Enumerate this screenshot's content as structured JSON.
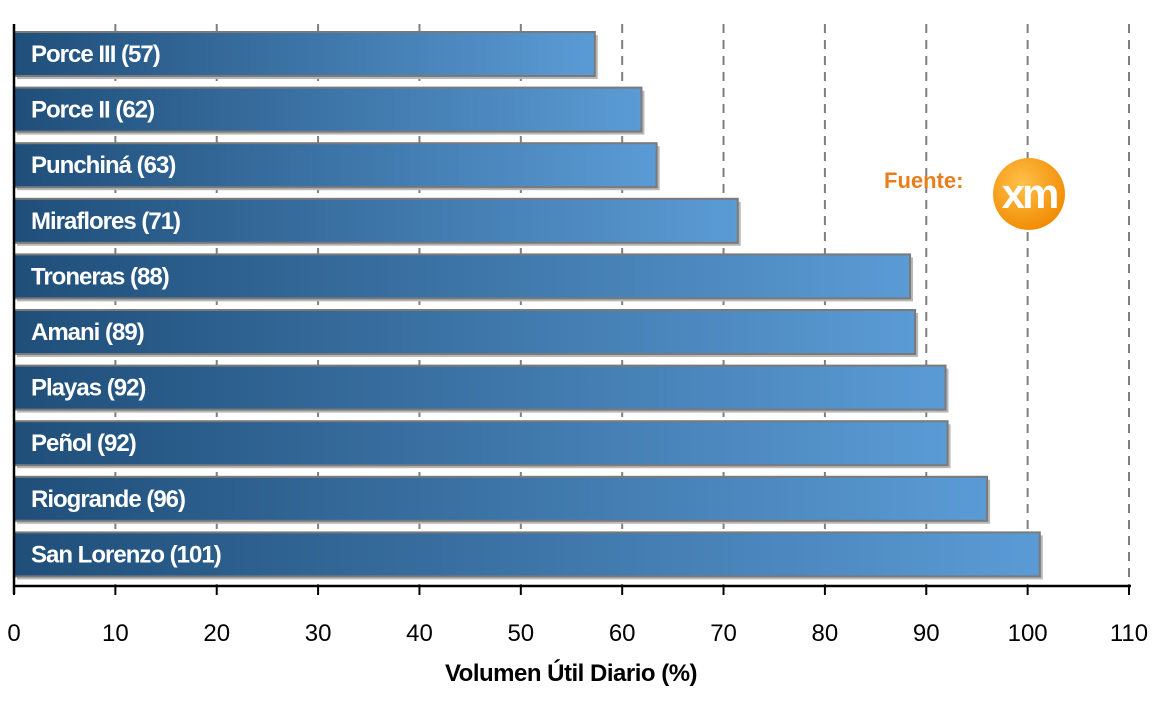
{
  "chart_data": {
    "type": "bar",
    "orientation": "horizontal",
    "categories": [
      "Porce III (57)",
      "Porce II (62)",
      "Punchiná (63)",
      "Miraflores (71)",
      "Troneras (88)",
      "Amani (89)",
      "Playas (92)",
      "Peñol (92)",
      "Riogrande (96)",
      "San Lorenzo (101)"
    ],
    "values": [
      57.3,
      61.9,
      63.4,
      71.4,
      88.4,
      88.9,
      91.9,
      92.1,
      96.0,
      101.2
    ],
    "xlabel": "Volumen Útil Diario (%)",
    "xlim": [
      0,
      110
    ],
    "xticks": [
      "0",
      "10",
      "20",
      "30",
      "40",
      "50",
      "60",
      "70",
      "80",
      "90",
      "100",
      "110"
    ],
    "grid": "vertical dashed",
    "bar_color_start": "#1f4e79",
    "bar_color_end": "#5b9bd5"
  },
  "source": {
    "label": "Fuente:",
    "logo_text": "xm",
    "logo_icon": "xm-logo-icon",
    "label_color": "#e87e1e",
    "logo_color": "#f39200"
  }
}
